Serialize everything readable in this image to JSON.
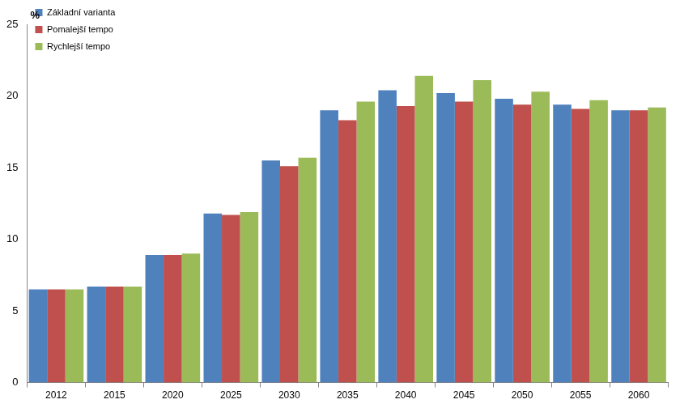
{
  "chart_data": {
    "type": "bar",
    "y_label": "%",
    "categories": [
      "2012",
      "2015",
      "2020",
      "2025",
      "2030",
      "2035",
      "2040",
      "2045",
      "2050",
      "2055",
      "2060"
    ],
    "series": [
      {
        "name": "Základní varianta",
        "color": "#4f81bd",
        "values": [
          6.5,
          6.7,
          8.9,
          11.8,
          15.5,
          19.0,
          20.4,
          20.2,
          19.8,
          19.4,
          19.0
        ]
      },
      {
        "name": "Pomalejší tempo",
        "color": "#c0504d",
        "values": [
          6.5,
          6.7,
          8.9,
          11.7,
          15.1,
          18.3,
          19.3,
          19.6,
          19.4,
          19.1,
          19.0
        ]
      },
      {
        "name": "Rychlejší tempo",
        "color": "#9bbb59",
        "values": [
          6.5,
          6.7,
          9.0,
          11.9,
          15.7,
          19.6,
          21.4,
          21.1,
          20.3,
          19.7,
          19.2
        ]
      }
    ],
    "ylim": [
      0,
      25
    ],
    "yticks": [
      0,
      5,
      10,
      15,
      20,
      25
    ],
    "grid": false,
    "legend": "upper left"
  }
}
